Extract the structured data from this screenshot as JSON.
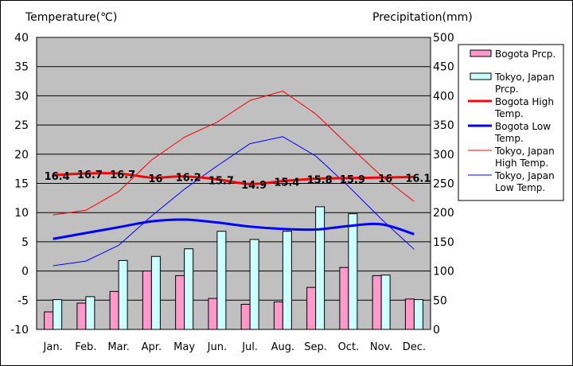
{
  "chart_data": {
    "type": "bar+line",
    "y_left_label": "Temperature(℃)",
    "y_right_label": "Precipitation(mm)",
    "y_left_range": [
      -10,
      40
    ],
    "y_left_ticks": [
      40,
      35,
      30,
      25,
      20,
      15,
      10,
      5,
      0,
      -5,
      -10
    ],
    "y_right_range": [
      0,
      500
    ],
    "y_right_ticks": [
      500,
      450,
      400,
      350,
      300,
      250,
      200,
      150,
      100,
      50,
      0
    ],
    "categories": [
      "Jan.",
      "Feb.",
      "Mar.",
      "Apr.",
      "May",
      "Jun.",
      "Jul.",
      "Aug.",
      "Sep.",
      "Oct.",
      "Nov.",
      "Dec."
    ],
    "grid": true,
    "legend_position": "right",
    "series": [
      {
        "name": "Bogota Prcp.",
        "kind": "bar",
        "axis": "right",
        "color": "#ff99cc",
        "values": [
          30,
          45,
          65,
          100,
          92,
          53,
          43,
          47,
          72,
          106,
          92,
          52
        ]
      },
      {
        "name": "Tokyo, Japan Prcp.",
        "kind": "bar",
        "axis": "right",
        "color": "#ccffff",
        "values": [
          51,
          56,
          118,
          125,
          138,
          168,
          154,
          168,
          210,
          198,
          93,
          51
        ]
      },
      {
        "name": "Bogota High Temp.",
        "kind": "line",
        "axis": "left",
        "color": "#ff0000",
        "width": 3,
        "values": [
          16.4,
          16.7,
          16.7,
          16.0,
          16.2,
          15.7,
          14.9,
          15.4,
          15.8,
          15.9,
          16.0,
          16.1
        ],
        "labels": [
          "16.4",
          "16.7",
          "16.7",
          "16",
          "16.2",
          "15.7",
          "14.9",
          "15.4",
          "15.8",
          "15.9",
          "16",
          "16.1"
        ]
      },
      {
        "name": "Bogota Low Temp.",
        "kind": "line",
        "axis": "left",
        "color": "#0000ff",
        "width": 3,
        "values": [
          5.5,
          6.5,
          7.5,
          8.5,
          8.8,
          8.3,
          7.6,
          7.2,
          7.1,
          7.7,
          8.0,
          6.3
        ]
      },
      {
        "name": "Tokyo, Japan High Temp.",
        "kind": "line",
        "axis": "left",
        "color": "#ff0000",
        "width": 1,
        "values": [
          9.6,
          10.4,
          13.6,
          19.0,
          22.9,
          25.5,
          29.2,
          30.8,
          26.9,
          21.5,
          16.3,
          11.9
        ]
      },
      {
        "name": "Tokyo, Japan Low Temp.",
        "kind": "line",
        "axis": "left",
        "color": "#0000ff",
        "width": 1,
        "values": [
          0.9,
          1.7,
          4.4,
          9.4,
          14.0,
          18.0,
          21.8,
          23.0,
          19.7,
          14.5,
          8.9,
          3.7
        ]
      }
    ],
    "legend": [
      {
        "label": "Bogota Prcp.",
        "kind": "bar",
        "color": "#ff99cc"
      },
      {
        "label": "Tokyo, Japan Prcp.",
        "kind": "bar",
        "color": "#ccffff"
      },
      {
        "label": "Bogota High Temp.",
        "kind": "line",
        "color": "#ff0000",
        "width": 3
      },
      {
        "label": "Bogota Low Temp.",
        "kind": "line",
        "color": "#0000ff",
        "width": 3
      },
      {
        "label": "Tokyo, Japan High Temp.",
        "kind": "line",
        "color": "#ff0000",
        "width": 1
      },
      {
        "label": "Tokyo, Japan Low Temp.",
        "kind": "line",
        "color": "#0000ff",
        "width": 1
      }
    ],
    "plot_background": "#c0c0c0"
  }
}
